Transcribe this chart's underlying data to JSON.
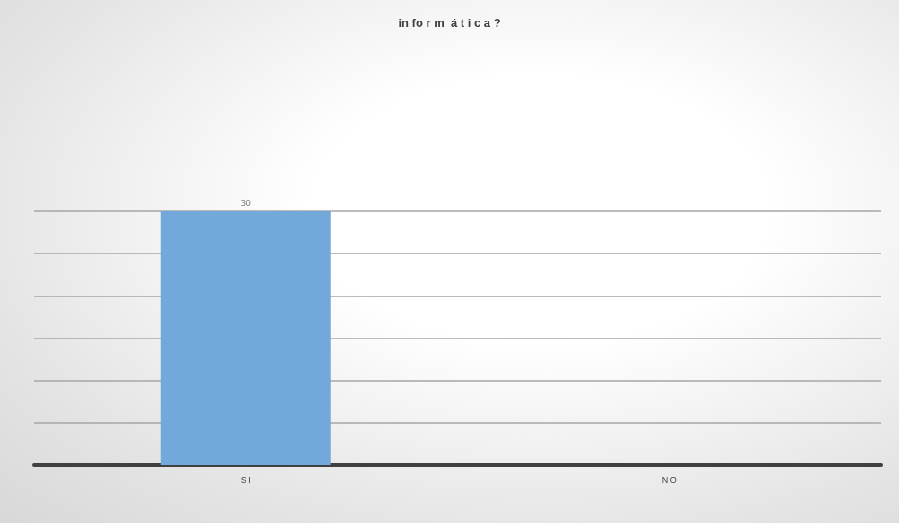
{
  "chart_data": {
    "type": "bar",
    "title": "in fo r m  á t i c a ?",
    "categories": [
      "S I",
      "N O"
    ],
    "values": [
      30,
      0
    ],
    "value_labels": [
      "30",
      null
    ],
    "color": "#72a8da",
    "grid": "y",
    "tick_labels": "x"
  }
}
